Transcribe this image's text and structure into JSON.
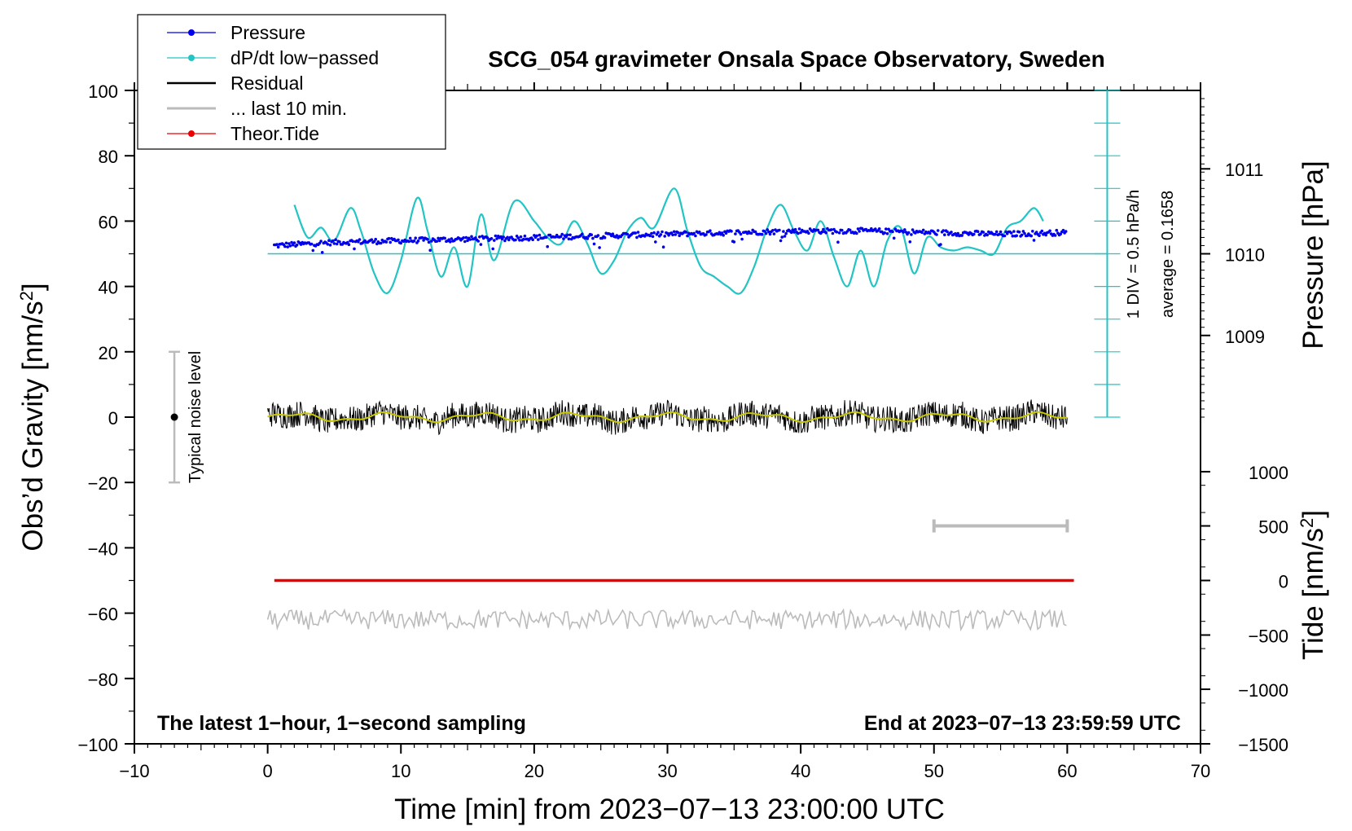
{
  "chart_data": {
    "type": "line",
    "title": "SCG_054 gravimeter Onsala Space Observatory, Sweden",
    "xlabel": "Time [min] from 2023−07−13 23:00:00 UTC",
    "ylabel": "Obs’d Gravity [nm/s",
    "ylabel_sup": "2",
    "ylabel_close": "]",
    "xlim": [
      -10,
      70
    ],
    "ylim": [
      -100,
      100
    ],
    "x_ticks": [
      -10,
      0,
      10,
      20,
      30,
      40,
      50,
      60,
      70
    ],
    "x_tick_labels": [
      "−10",
      "0",
      "10",
      "20",
      "30",
      "40",
      "50",
      "60",
      "70"
    ],
    "y_ticks": [
      -100,
      -80,
      -60,
      -40,
      -20,
      0,
      20,
      40,
      60,
      80,
      100
    ],
    "y_tick_labels": [
      "−100",
      "−80",
      "−60",
      "−40",
      "−20",
      "0",
      "20",
      "40",
      "60",
      "80",
      "100"
    ],
    "pressure_axis": {
      "label": "Pressure [hPa]",
      "ticks": [
        {
          "value": 1011,
          "label": "1011",
          "gravity_pos": 76
        },
        {
          "value": 1010,
          "label": "1010",
          "gravity_pos": 50
        },
        {
          "value": 1009,
          "label": "1009",
          "gravity_pos": 25
        }
      ]
    },
    "tide_axis": {
      "label": "Tide [nm/s",
      "label_sup": "2",
      "label_close": "]",
      "ticks": [
        {
          "value": 1000,
          "label": "1000",
          "gravity_pos": -16.7
        },
        {
          "value": 500,
          "label": "500",
          "gravity_pos": -33.3
        },
        {
          "value": 0,
          "label": "0",
          "gravity_pos": -50
        },
        {
          "value": -500,
          "label": "−500",
          "gravity_pos": -66.7
        },
        {
          "value": -1000,
          "label": "−1000",
          "gravity_pos": -83.3
        },
        {
          "value": -1500,
          "label": "−1500",
          "gravity_pos": -100
        }
      ]
    },
    "legend": {
      "position": "top-left",
      "entries": [
        {
          "label": "Pressure",
          "color": "#0000ee",
          "marker": "dot"
        },
        {
          "label": "dP/dt low−passed",
          "color": "#22c4c4",
          "marker": "dot"
        },
        {
          "label": "Residual",
          "color": "#000000",
          "marker": "none"
        },
        {
          "label": "... last 10 min.",
          "color": "#bbbbbb",
          "marker": "none"
        },
        {
          "label": "Theor.Tide",
          "color": "#ee0000",
          "marker": "dot"
        }
      ]
    },
    "series": [
      {
        "name": "Pressure",
        "color": "#0000ee",
        "x": [
          0.5,
          5,
          10,
          15,
          20,
          25,
          30,
          35,
          40,
          45,
          50,
          55,
          60
        ],
        "y": [
          52.5,
          53.5,
          54.0,
          54.5,
          55.0,
          55.5,
          56.0,
          56.5,
          57.0,
          57.0,
          56.5,
          56.0,
          56.5
        ]
      },
      {
        "name": "dP/dt low−passed",
        "color": "#22c4c4",
        "x": [
          2,
          3,
          4,
          5,
          6.2,
          7,
          8,
          9,
          10,
          11.2,
          12,
          13,
          14,
          15,
          16,
          17,
          18.5,
          20,
          21,
          22,
          23,
          24,
          25,
          26,
          27,
          28,
          29,
          30.5,
          31.5,
          32.5,
          33.5,
          34.5,
          35.5,
          36.5,
          37.5,
          38.5,
          39.5,
          40.5,
          41.5,
          42.5,
          43.5,
          44.5,
          45.5,
          46.5,
          47.5,
          48.5,
          49.5,
          50.5,
          51.5,
          52.5,
          53.5,
          54.5,
          55.5,
          56.5,
          57.5,
          58.2
        ],
        "y": [
          65,
          55,
          58,
          54,
          64,
          57,
          44,
          38,
          48,
          67,
          57,
          43,
          52,
          40,
          62,
          48,
          66,
          60,
          55,
          53,
          60,
          53,
          44,
          48,
          57,
          61,
          58,
          70,
          57,
          46,
          43,
          40,
          38,
          46,
          58,
          65,
          57,
          51,
          60,
          49,
          40,
          51,
          40,
          54,
          58,
          44,
          55,
          52,
          51,
          52,
          51,
          50,
          58,
          60,
          64,
          60
        ]
      },
      {
        "name": "Residual",
        "color": "#000000",
        "x": [
          0,
          60
        ],
        "y": [
          0,
          0
        ],
        "noise_amplitude_nm_s2": 4
      },
      {
        "name": "... last 10 min.",
        "color": "#bbbbbb",
        "x": [
          0,
          60
        ],
        "y": [
          -62,
          -62
        ],
        "noise_amplitude_nm_s2": 3
      },
      {
        "name": "Theor.Tide",
        "color": "#ee0000",
        "x": [
          0.5,
          60.5
        ],
        "y": [
          -50,
          -50
        ]
      }
    ],
    "dpdt_scale": {
      "zero_gravity": 50,
      "label_div": "1 DIV = 0.5 hPa/h",
      "label_average": "average = 0.1658"
    },
    "noise_bar": {
      "x": -7,
      "center": 0,
      "low": -20,
      "high": 20,
      "label": "Typical noise level"
    },
    "scale_bar_10min": {
      "x_start": 50,
      "x_end": 60,
      "y": -33.3
    },
    "footer_left": "The latest 1−hour, 1−second sampling",
    "footer_right": "End at 2023−07−13 23:59:59 UTC"
  }
}
